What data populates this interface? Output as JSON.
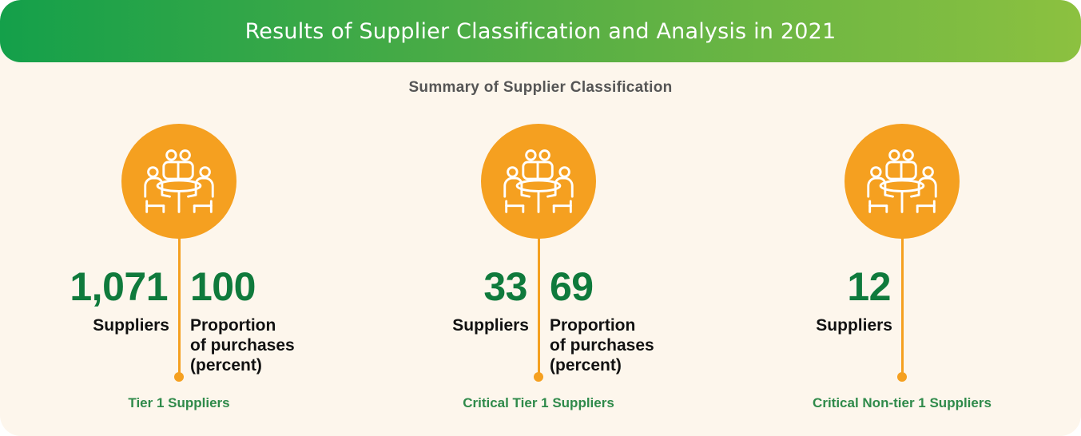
{
  "header": {
    "title": "Results of Supplier Classification and Analysis in 2021",
    "subtitle": "Summary of Supplier Classification"
  },
  "colors": {
    "banner_start": "#14a04a",
    "banner_end": "#8cc140",
    "accent_orange": "#f5a020",
    "number_green": "#0f7a3c",
    "tier_green": "#2f8a4a",
    "background": "#fdf6ec"
  },
  "groups": [
    {
      "icon": "meeting-people-icon",
      "count": "1,071",
      "count_label": "Suppliers",
      "proportion": "100",
      "proportion_label_1": "Proportion",
      "proportion_label_2": "of purchases",
      "proportion_label_3": "(percent)",
      "tier_label": "Tier 1 Suppliers"
    },
    {
      "icon": "meeting-people-icon",
      "count": "33",
      "count_label": "Suppliers",
      "proportion": "69",
      "proportion_label_1": "Proportion",
      "proportion_label_2": "of purchases",
      "proportion_label_3": "(percent)",
      "tier_label": "Critical Tier 1 Suppliers"
    },
    {
      "icon": "meeting-people-icon",
      "count": "12",
      "count_label": "Suppliers",
      "tier_label": "Critical Non-tier 1 Suppliers"
    }
  ]
}
